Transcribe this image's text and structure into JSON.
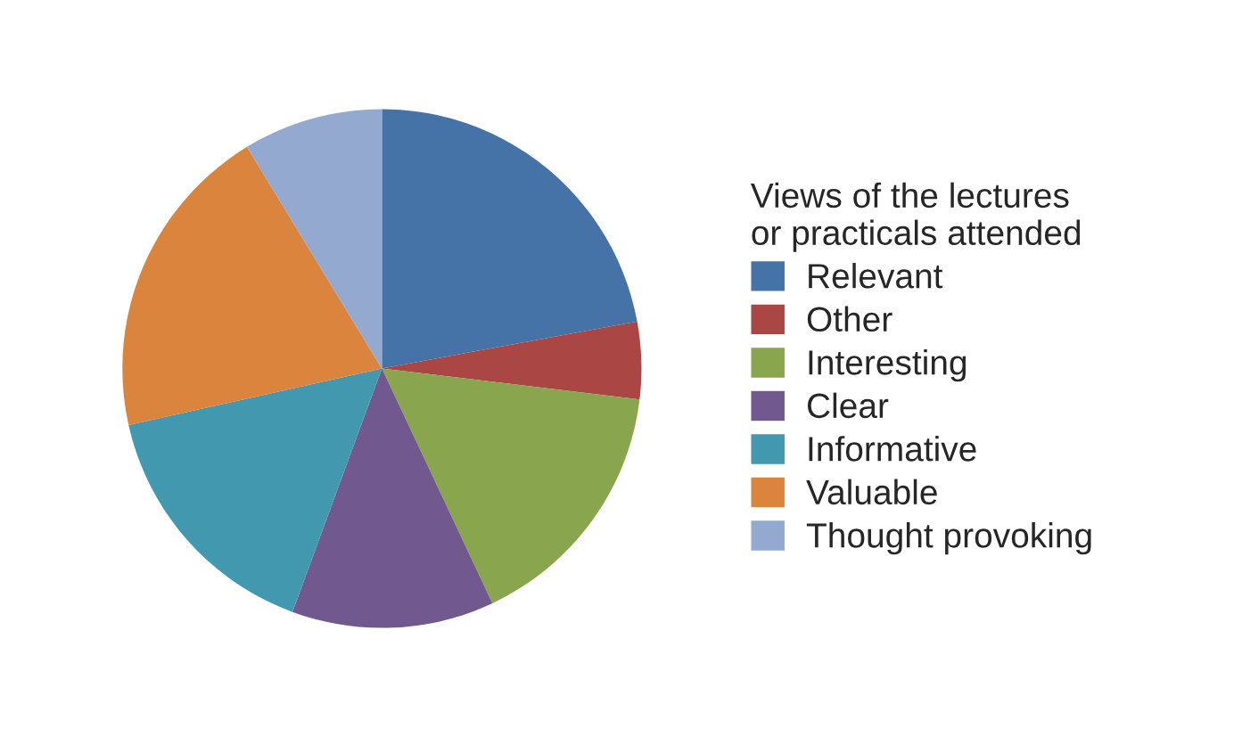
{
  "chart_data": {
    "type": "pie",
    "legend_title": "Views of the lectures\nor practicals attended",
    "categories": [
      "Relevant",
      "Other",
      "Interesting",
      "Clear",
      "Informative",
      "Valuable",
      "Thought provoking"
    ],
    "values": [
      22.1,
      4.8,
      16.1,
      12.6,
      15.9,
      19.8,
      8.7
    ],
    "colors": [
      "#4573a7",
      "#aa4643",
      "#89a54e",
      "#71588f",
      "#4198af",
      "#db843d",
      "#93a9cf"
    ],
    "legend": "right"
  }
}
